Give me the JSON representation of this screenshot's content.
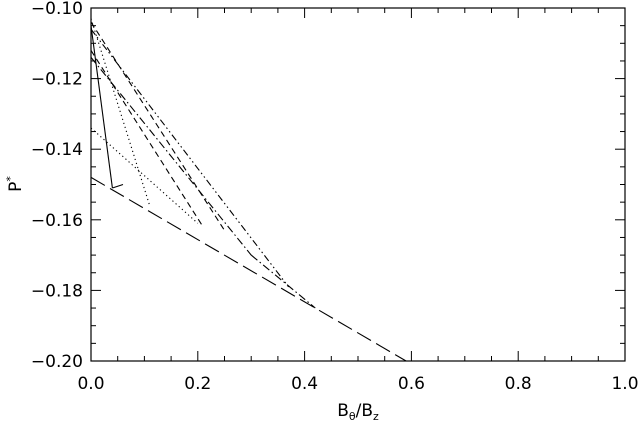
{
  "chart_data": {
    "type": "line",
    "xlabel": {
      "main": "B",
      "sub1": "θ",
      "mid": "/B",
      "sub2": "z"
    },
    "ylabel": {
      "main": "P",
      "sup": "*"
    },
    "xlim": [
      0.0,
      1.0
    ],
    "ylim": [
      -0.2,
      -0.1
    ],
    "x_ticks": [
      0.0,
      0.2,
      0.4,
      0.6,
      0.8,
      1.0
    ],
    "x_tick_labels": [
      "0.0",
      "0.2",
      "0.4",
      "0.6",
      "0.8",
      "1.0"
    ],
    "y_ticks": [
      -0.2,
      -0.18,
      -0.16,
      -0.14,
      -0.12,
      -0.1
    ],
    "y_tick_labels": [
      "−0.20",
      "−0.18",
      "−0.16",
      "−0.14",
      "−0.12",
      "−0.10"
    ],
    "grid": false,
    "series": [
      {
        "style": "solid",
        "x": [
          0.0,
          0.04
        ],
        "y": [
          -0.105,
          -0.151
        ]
      },
      {
        "style": "solid",
        "x": [
          0.04,
          0.06
        ],
        "y": [
          -0.151,
          -0.15
        ]
      },
      {
        "style": "dotted",
        "x": [
          0.0,
          0.11
        ],
        "y": [
          -0.103,
          -0.156
        ]
      },
      {
        "style": "dotted",
        "x": [
          0.0,
          0.2
        ],
        "y": [
          -0.134,
          -0.161
        ]
      },
      {
        "style": "dashed",
        "x": [
          0.0,
          0.21
        ],
        "y": [
          -0.112,
          -0.162
        ]
      },
      {
        "style": "dashed",
        "x": [
          0.0,
          0.25
        ],
        "y": [
          -0.104,
          -0.163
        ]
      },
      {
        "style": "dash-dot",
        "x": [
          0.0,
          0.3
        ],
        "y": [
          -0.114,
          -0.17
        ]
      },
      {
        "style": "dash-dot",
        "x": [
          0.3,
          0.42
        ],
        "y": [
          -0.17,
          -0.185
        ]
      },
      {
        "style": "dash-dot-dot",
        "x": [
          0.0,
          0.37
        ],
        "y": [
          -0.106,
          -0.179
        ]
      },
      {
        "style": "long-dash",
        "x": [
          0.0,
          0.59
        ],
        "y": [
          -0.148,
          -0.2
        ]
      }
    ]
  }
}
